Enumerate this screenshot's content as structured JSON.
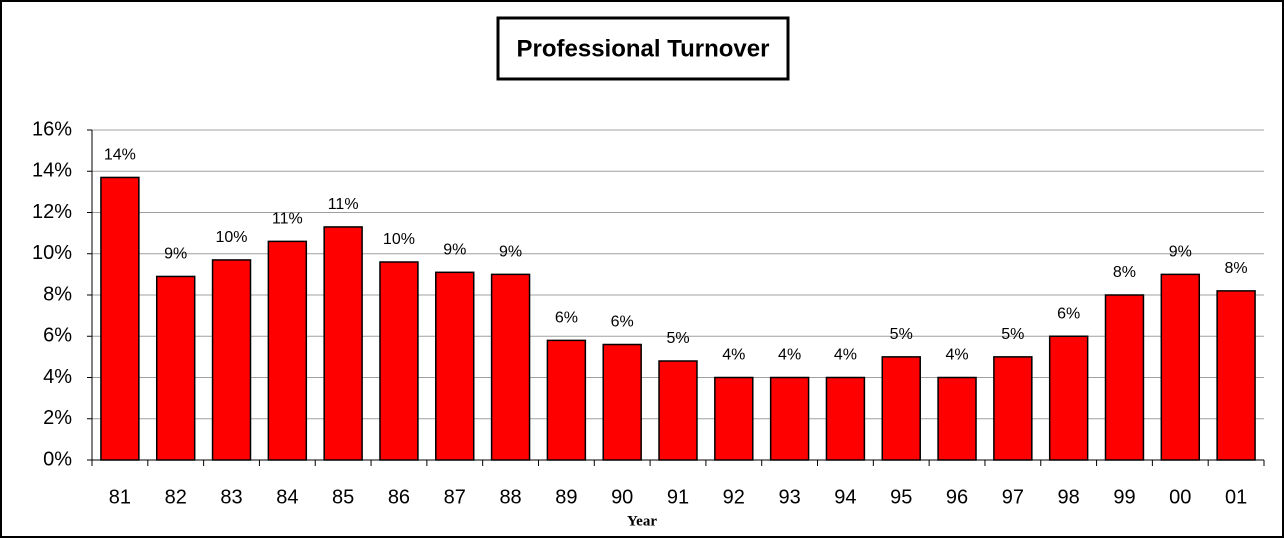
{
  "chart_data": {
    "type": "bar",
    "title": "Professional Turnover",
    "x_label": "Year",
    "categories": [
      "81",
      "82",
      "83",
      "84",
      "85",
      "86",
      "87",
      "88",
      "89",
      "90",
      "91",
      "92",
      "93",
      "94",
      "95",
      "96",
      "97",
      "98",
      "99",
      "00",
      "01"
    ],
    "values": [
      13.7,
      8.9,
      9.7,
      10.6,
      11.3,
      9.6,
      9.1,
      9.0,
      5.8,
      5.6,
      4.8,
      4.0,
      4.0,
      4.0,
      5.0,
      4.0,
      5.0,
      6.0,
      8.0,
      9.0,
      8.2
    ],
    "value_labels": [
      "14%",
      "9%",
      "10%",
      "11%",
      "11%",
      "10%",
      "9%",
      "9%",
      "6%",
      "6%",
      "5%",
      "4%",
      "4%",
      "4%",
      "5%",
      "4%",
      "5%",
      "6%",
      "8%",
      "9%",
      "8%"
    ],
    "color": "#ff0000",
    "ylim": [
      0,
      16
    ],
    "yticks": [
      {
        "value": 0,
        "label": "0%"
      },
      {
        "value": 2,
        "label": "2%"
      },
      {
        "value": 4,
        "label": "4%"
      },
      {
        "value": 6,
        "label": "6%"
      },
      {
        "value": 8,
        "label": "8%"
      },
      {
        "value": 10,
        "label": "10%"
      },
      {
        "value": 12,
        "label": "12%"
      },
      {
        "value": 14,
        "label": "14%"
      },
      {
        "value": 16,
        "label": "16%"
      }
    ],
    "grid": true
  }
}
